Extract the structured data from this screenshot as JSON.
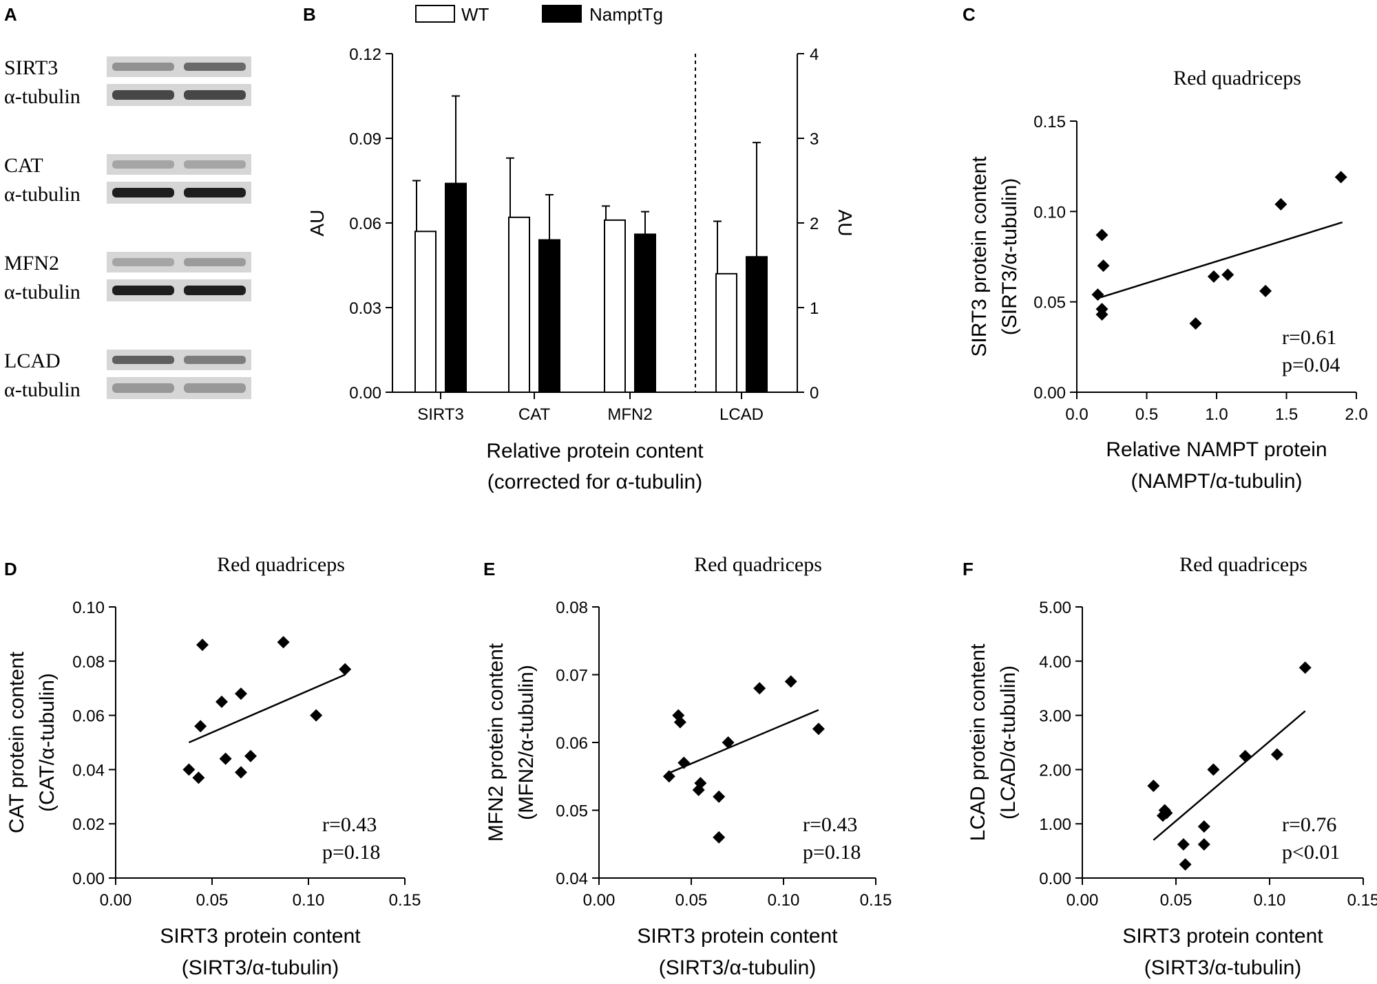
{
  "figure": {
    "panel_letters": [
      "A",
      "B",
      "C",
      "D",
      "E",
      "F"
    ]
  },
  "blot": {
    "groups": [
      {
        "protein": "SIRT3",
        "loading": "α-tubulin"
      },
      {
        "protein": "CAT",
        "loading": "α-tubulin"
      },
      {
        "protein": "MFN2",
        "loading": "α-tubulin"
      },
      {
        "protein": "LCAD",
        "loading": "α-tubulin"
      }
    ]
  },
  "chart_data": [
    {
      "panel": "B",
      "type": "bar",
      "categories": [
        "SIRT3",
        "CAT",
        "MFN2",
        "LCAD"
      ],
      "legend": [
        "WT",
        "NamptTg"
      ],
      "series": [
        {
          "name": "WT",
          "color": "#ffffff",
          "values": [
            0.057,
            0.062,
            0.061,
            1.4
          ],
          "errors": [
            0.018,
            0.021,
            0.005,
            0.62
          ]
        },
        {
          "name": "NamptTg",
          "color": "#000000",
          "values": [
            0.074,
            0.054,
            0.056,
            1.6
          ],
          "errors": [
            0.031,
            0.016,
            0.008,
            1.35
          ]
        }
      ],
      "left_axis": {
        "label": "AU",
        "ylim": [
          0,
          0.12
        ],
        "ticks": [
          "0.00",
          "0.03",
          "0.06",
          "0.09",
          "0.12"
        ],
        "applies_to": [
          "SIRT3",
          "CAT",
          "MFN2"
        ]
      },
      "right_axis": {
        "label": "AU",
        "ylim": [
          0,
          4
        ],
        "ticks": [
          "0",
          "1",
          "2",
          "3",
          "4"
        ],
        "applies_to": [
          "LCAD"
        ]
      },
      "xlabel": [
        "Relative protein content",
        "(corrected for α-tubulin)"
      ]
    },
    {
      "panel": "C",
      "type": "scatter",
      "title": "Red quadriceps",
      "xlabel": [
        "Relative NAMPT protein",
        "(NAMPT/α-tubulin)"
      ],
      "ylabel": [
        "SIRT3 protein content",
        "(SIRT3/α-tubulin)"
      ],
      "xlim": [
        0,
        2.0
      ],
      "ylim": [
        0,
        0.15
      ],
      "xticks": [
        "0.0",
        "0.5",
        "1.0",
        "1.5",
        "2.0"
      ],
      "yticks": [
        "0.00",
        "0.05",
        "0.10",
        "0.15"
      ],
      "points": [
        [
          0.18,
          0.087
        ],
        [
          0.19,
          0.07
        ],
        [
          0.15,
          0.054
        ],
        [
          0.18,
          0.046
        ],
        [
          0.18,
          0.043
        ],
        [
          0.85,
          0.038
        ],
        [
          0.98,
          0.064
        ],
        [
          1.08,
          0.065
        ],
        [
          1.35,
          0.056
        ],
        [
          1.46,
          0.104
        ],
        [
          1.89,
          0.119
        ]
      ],
      "fit": [
        [
          0.15,
          0.052
        ],
        [
          1.9,
          0.094
        ]
      ],
      "stats": [
        "r=0.61",
        "p=0.04"
      ]
    },
    {
      "panel": "D",
      "type": "scatter",
      "title": "Red quadriceps",
      "xlabel": [
        "SIRT3 protein content",
        "(SIRT3/α-tubulin)"
      ],
      "ylabel": [
        "CAT protein content",
        "(CAT/α-tubulin)"
      ],
      "xlim": [
        0,
        0.15
      ],
      "ylim": [
        0,
        0.1
      ],
      "xticks": [
        "0.00",
        "0.05",
        "0.10",
        "0.15"
      ],
      "yticks": [
        "0.00",
        "0.02",
        "0.04",
        "0.06",
        "0.08",
        "0.10"
      ],
      "points": [
        [
          0.038,
          0.04
        ],
        [
          0.043,
          0.037
        ],
        [
          0.044,
          0.056
        ],
        [
          0.045,
          0.086
        ],
        [
          0.055,
          0.065
        ],
        [
          0.057,
          0.044
        ],
        [
          0.065,
          0.068
        ],
        [
          0.065,
          0.039
        ],
        [
          0.07,
          0.045
        ],
        [
          0.087,
          0.087
        ],
        [
          0.104,
          0.06
        ],
        [
          0.119,
          0.077
        ]
      ],
      "fit": [
        [
          0.038,
          0.05
        ],
        [
          0.119,
          0.075
        ]
      ],
      "stats": [
        "r=0.43",
        "p=0.18"
      ]
    },
    {
      "panel": "E",
      "type": "scatter",
      "title": "Red quadriceps",
      "xlabel": [
        "SIRT3 protein content",
        "(SIRT3/α-tubulin)"
      ],
      "ylabel": [
        "MFN2 protein content",
        "(MFN2/α-tubulin)"
      ],
      "xlim": [
        0,
        0.15
      ],
      "ylim": [
        0.04,
        0.08
      ],
      "xticks": [
        "0.00",
        "0.05",
        "0.10",
        "0.15"
      ],
      "yticks": [
        "0.04",
        "0.05",
        "0.06",
        "0.07",
        "0.08"
      ],
      "points": [
        [
          0.038,
          0.055
        ],
        [
          0.043,
          0.064
        ],
        [
          0.044,
          0.063
        ],
        [
          0.046,
          0.057
        ],
        [
          0.054,
          0.053
        ],
        [
          0.055,
          0.054
        ],
        [
          0.065,
          0.052
        ],
        [
          0.065,
          0.046
        ],
        [
          0.07,
          0.06
        ],
        [
          0.087,
          0.068
        ],
        [
          0.104,
          0.069
        ],
        [
          0.119,
          0.062
        ]
      ],
      "fit": [
        [
          0.038,
          0.0555
        ],
        [
          0.119,
          0.0648
        ]
      ],
      "stats": [
        "r=0.43",
        "p=0.18"
      ]
    },
    {
      "panel": "F",
      "type": "scatter",
      "title": "Red quadriceps",
      "xlabel": [
        "SIRT3 protein content",
        "(SIRT3/α-tubulin)"
      ],
      "ylabel": [
        "LCAD protein content",
        "(LCAD/α-tubulin)"
      ],
      "xlim": [
        0,
        0.15
      ],
      "ylim": [
        0,
        5.0
      ],
      "xticks": [
        "0.00",
        "0.05",
        "0.10",
        "0.15"
      ],
      "yticks": [
        "0.00",
        "1.00",
        "2.00",
        "3.00",
        "4.00",
        "5.00"
      ],
      "points": [
        [
          0.038,
          1.7
        ],
        [
          0.043,
          1.15
        ],
        [
          0.044,
          1.25
        ],
        [
          0.045,
          1.2
        ],
        [
          0.054,
          0.62
        ],
        [
          0.055,
          0.25
        ],
        [
          0.065,
          0.95
        ],
        [
          0.065,
          0.62
        ],
        [
          0.07,
          2.0
        ],
        [
          0.087,
          2.25
        ],
        [
          0.104,
          2.28
        ],
        [
          0.119,
          3.88
        ]
      ],
      "fit": [
        [
          0.038,
          0.7
        ],
        [
          0.119,
          3.08
        ]
      ],
      "stats": [
        "r=0.76",
        "p<0.01"
      ]
    }
  ]
}
